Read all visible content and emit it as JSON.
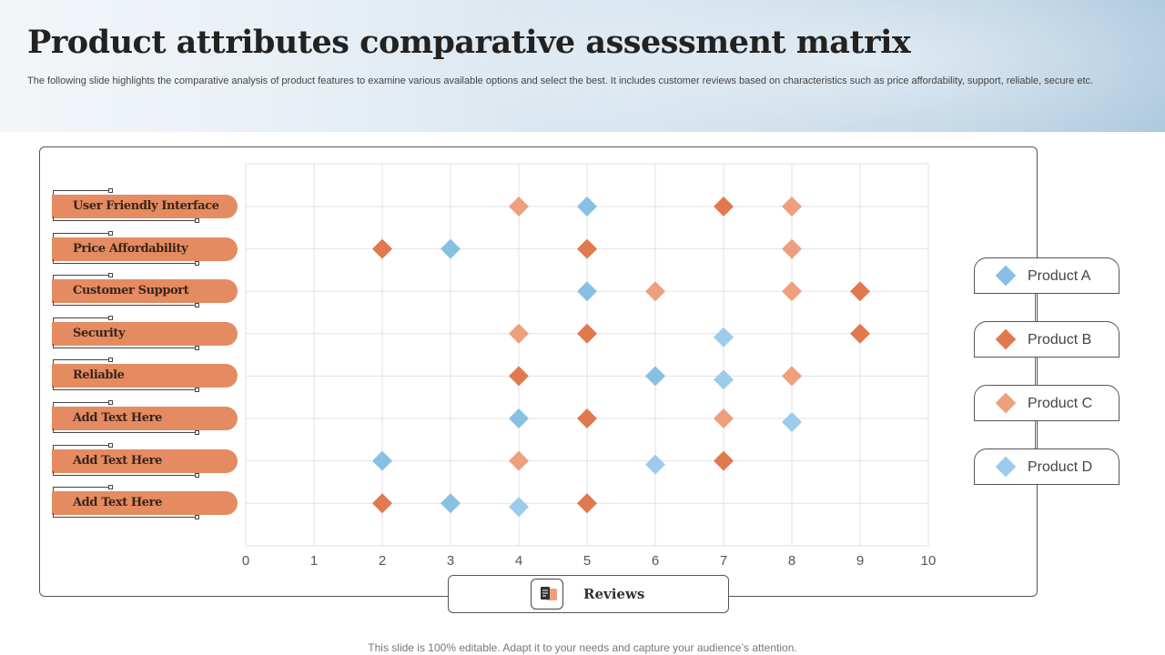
{
  "header": {
    "title": "Product attributes comparative assessment matrix",
    "subtitle": "The following slide highlights the comparative analysis of product features to examine various available options and select the best. It includes customer reviews based on characteristics such as price affordability, support, reliable, secure etc."
  },
  "attributes": [
    "User Friendly Interface",
    "Price Affordability",
    "Customer Support",
    "Security",
    "Reliable",
    "Add Text Here",
    "Add Text Here",
    "Add Text Here"
  ],
  "legend": [
    {
      "label": "Product A",
      "color": "#88c0e4"
    },
    {
      "label": "Product B",
      "color": "#e1794f"
    },
    {
      "label": "Product C",
      "color": "#eea07e"
    },
    {
      "label": "Product D",
      "color": "#9dcbec"
    }
  ],
  "reviews_label": "Reviews",
  "footer": "This slide is 100% editable. Adapt it to your needs and capture your audience’s attention.",
  "chart_data": {
    "type": "scatter",
    "xlabel": "Reviews",
    "xlim": [
      0,
      10
    ],
    "x_ticks": [
      0,
      1,
      2,
      3,
      4,
      5,
      6,
      7,
      8,
      9,
      10
    ],
    "categories": [
      "User Friendly Interface",
      "Price Affordability",
      "Customer Support",
      "Security",
      "Reliable",
      "Add Text Here",
      "Add Text Here",
      "Add Text Here"
    ],
    "grid": true,
    "legend_position": "right",
    "series": [
      {
        "name": "Product A",
        "color": "#88c0e4",
        "points": [
          [
            5,
            0
          ],
          [
            3,
            1
          ],
          [
            5,
            2
          ],
          [
            6,
            4
          ],
          [
            4,
            5
          ],
          [
            2,
            6
          ],
          [
            3,
            7
          ]
        ]
      },
      {
        "name": "Product B",
        "color": "#e1794f",
        "points": [
          [
            7,
            0
          ],
          [
            2,
            1
          ],
          [
            5,
            1
          ],
          [
            9,
            2
          ],
          [
            5,
            3
          ],
          [
            9,
            3
          ],
          [
            4,
            4
          ],
          [
            5,
            5
          ],
          [
            7,
            6
          ],
          [
            2,
            7
          ],
          [
            5,
            7
          ]
        ]
      },
      {
        "name": "Product C",
        "color": "#eea07e",
        "points": [
          [
            4,
            0
          ],
          [
            8,
            0
          ],
          [
            8,
            1
          ],
          [
            6,
            2
          ],
          [
            8,
            2
          ],
          [
            4,
            3
          ],
          [
            8,
            4
          ],
          [
            7,
            5
          ],
          [
            4,
            6
          ]
        ]
      },
      {
        "name": "Product D",
        "color": "#9dcbec",
        "points": [
          [
            7,
            3
          ],
          [
            7,
            4
          ],
          [
            8,
            5
          ],
          [
            6,
            6
          ],
          [
            4,
            7
          ]
        ]
      }
    ]
  }
}
